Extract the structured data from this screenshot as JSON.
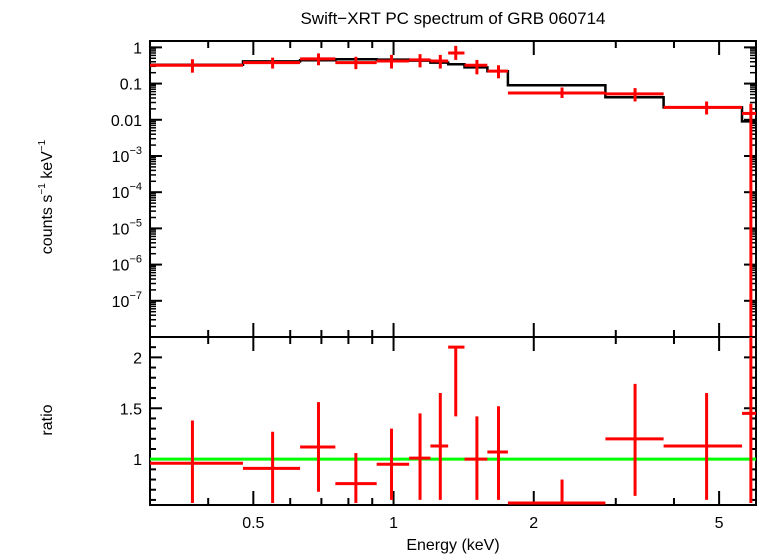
{
  "chart_data": [
    {
      "type": "step",
      "title": "Swift−XRT PC spectrum of GRB 060714",
      "ylabel_text": "counts s",
      "ylabel_sup1": "−1",
      "ylabel_mid": " keV",
      "ylabel_sup2": "−1",
      "xscale": "log",
      "yscale": "log",
      "xlim": [
        0.3,
        6.0
      ],
      "ylim": [
        1e-08,
        1.5
      ],
      "yticks": [
        {
          "value": 1,
          "label": "1"
        },
        {
          "value": 0.1,
          "label": "0.1"
        },
        {
          "value": 0.01,
          "label": "0.01"
        },
        {
          "value": 0.001,
          "base": "10",
          "exp": "−3"
        },
        {
          "value": 0.0001,
          "base": "10",
          "exp": "−4"
        },
        {
          "value": 1e-05,
          "base": "10",
          "exp": "−5"
        },
        {
          "value": 1e-06,
          "base": "10",
          "exp": "−6"
        },
        {
          "value": 1e-07,
          "base": "10",
          "exp": "−7"
        }
      ],
      "series": [
        {
          "kind": "data",
          "color": "#ff0000",
          "points": [
            {
              "x": 0.37,
              "xlo": 0.3,
              "xhi": 0.475,
              "y": 0.32,
              "ylo": 0.2,
              "yhi": 0.47
            },
            {
              "x": 0.55,
              "xlo": 0.475,
              "xhi": 0.63,
              "y": 0.38,
              "ylo": 0.26,
              "yhi": 0.52
            },
            {
              "x": 0.69,
              "xlo": 0.63,
              "xhi": 0.75,
              "y": 0.48,
              "ylo": 0.32,
              "yhi": 0.68
            },
            {
              "x": 0.83,
              "xlo": 0.75,
              "xhi": 0.92,
              "y": 0.38,
              "ylo": 0.25,
              "yhi": 0.55
            },
            {
              "x": 0.99,
              "xlo": 0.92,
              "xhi": 1.08,
              "y": 0.42,
              "ylo": 0.26,
              "yhi": 0.62
            },
            {
              "x": 1.14,
              "xlo": 1.08,
              "xhi": 1.2,
              "y": 0.45,
              "ylo": 0.28,
              "yhi": 0.65
            },
            {
              "x": 1.26,
              "xlo": 1.2,
              "xhi": 1.31,
              "y": 0.42,
              "ylo": 0.26,
              "yhi": 0.62
            },
            {
              "x": 1.36,
              "xlo": 1.31,
              "xhi": 1.42,
              "y": 0.7,
              "ylo": 0.45,
              "yhi": 1.1
            },
            {
              "x": 1.51,
              "xlo": 1.42,
              "xhi": 1.59,
              "y": 0.32,
              "ylo": 0.18,
              "yhi": 0.45
            },
            {
              "x": 1.68,
              "xlo": 1.59,
              "xhi": 1.76,
              "y": 0.22,
              "ylo": 0.14,
              "yhi": 0.32
            },
            {
              "x": 2.3,
              "xlo": 1.76,
              "xhi": 2.85,
              "y": 0.055,
              "ylo": 0.04,
              "yhi": 0.078
            },
            {
              "x": 3.3,
              "xlo": 2.85,
              "xhi": 3.8,
              "y": 0.052,
              "ylo": 0.032,
              "yhi": 0.075
            },
            {
              "x": 4.7,
              "xlo": 3.8,
              "xhi": 5.6,
              "y": 0.022,
              "ylo": 0.014,
              "yhi": 0.032
            },
            {
              "x": 5.85,
              "xlo": 5.6,
              "xhi": 6.0,
              "y": 0.015,
              "ylo": 1e-08,
              "yhi": 0.028
            }
          ]
        },
        {
          "kind": "model",
          "color": "#000000",
          "edges": [
            0.3,
            0.475,
            0.63,
            0.75,
            0.92,
            1.08,
            1.2,
            1.31,
            1.42,
            1.59,
            1.76,
            2.85,
            3.8,
            5.6,
            6.0
          ],
          "values": [
            0.33,
            0.41,
            0.44,
            0.47,
            0.46,
            0.43,
            0.38,
            0.34,
            0.28,
            0.22,
            0.09,
            0.042,
            0.022,
            0.009
          ]
        }
      ]
    },
    {
      "type": "scatter",
      "ylabel": "ratio",
      "xlabel": "Energy (keV)",
      "xscale": "log",
      "xlim": [
        0.3,
        6.0
      ],
      "ylim": [
        0.55,
        2.2
      ],
      "yticks": [
        {
          "value": 1,
          "label": "1"
        },
        {
          "value": 1.5,
          "label": "1.5"
        },
        {
          "value": 2,
          "label": "2"
        }
      ],
      "xticks": [
        {
          "value": 0.5,
          "label": "0.5"
        },
        {
          "value": 1,
          "label": "1"
        },
        {
          "value": 2,
          "label": "2"
        },
        {
          "value": 5,
          "label": "5"
        }
      ],
      "reference_line": {
        "y": 1,
        "color": "#00ff00"
      },
      "series": [
        {
          "kind": "data",
          "color": "#ff0000",
          "points": [
            {
              "x": 0.37,
              "xlo": 0.3,
              "xhi": 0.475,
              "y": 0.96,
              "ylo": 0.57,
              "yhi": 1.38
            },
            {
              "x": 0.55,
              "xlo": 0.475,
              "xhi": 0.63,
              "y": 0.91,
              "ylo": 0.57,
              "yhi": 1.27
            },
            {
              "x": 0.69,
              "xlo": 0.63,
              "xhi": 0.75,
              "y": 1.12,
              "ylo": 0.68,
              "yhi": 1.56
            },
            {
              "x": 0.83,
              "xlo": 0.75,
              "xhi": 0.92,
              "y": 0.76,
              "ylo": 0.57,
              "yhi": 1.06
            },
            {
              "x": 0.99,
              "xlo": 0.92,
              "xhi": 1.08,
              "y": 0.95,
              "ylo": 0.6,
              "yhi": 1.3
            },
            {
              "x": 1.14,
              "xlo": 1.08,
              "xhi": 1.2,
              "y": 1.01,
              "ylo": 0.6,
              "yhi": 1.45
            },
            {
              "x": 1.26,
              "xlo": 1.2,
              "xhi": 1.31,
              "y": 1.13,
              "ylo": 0.6,
              "yhi": 1.65
            },
            {
              "x": 1.36,
              "xlo": 1.31,
              "xhi": 1.42,
              "y": 2.1,
              "ylo": 1.42,
              "yhi": 2.1
            },
            {
              "x": 1.51,
              "xlo": 1.42,
              "xhi": 1.59,
              "y": 1.0,
              "ylo": 0.6,
              "yhi": 1.42
            },
            {
              "x": 1.68,
              "xlo": 1.59,
              "xhi": 1.76,
              "y": 1.07,
              "ylo": 0.6,
              "yhi": 1.52
            },
            {
              "x": 2.3,
              "xlo": 1.76,
              "xhi": 2.85,
              "y": 0.57,
              "ylo": 0.57,
              "yhi": 0.8
            },
            {
              "x": 3.3,
              "xlo": 2.85,
              "xhi": 3.8,
              "y": 1.2,
              "ylo": 0.64,
              "yhi": 1.74
            },
            {
              "x": 4.7,
              "xlo": 3.8,
              "xhi": 5.6,
              "y": 1.13,
              "ylo": 0.6,
              "yhi": 1.65
            },
            {
              "x": 5.85,
              "xlo": 5.6,
              "xhi": 6.0,
              "y": 1.45,
              "ylo": 0.57,
              "yhi": 2.2
            }
          ]
        }
      ]
    }
  ]
}
